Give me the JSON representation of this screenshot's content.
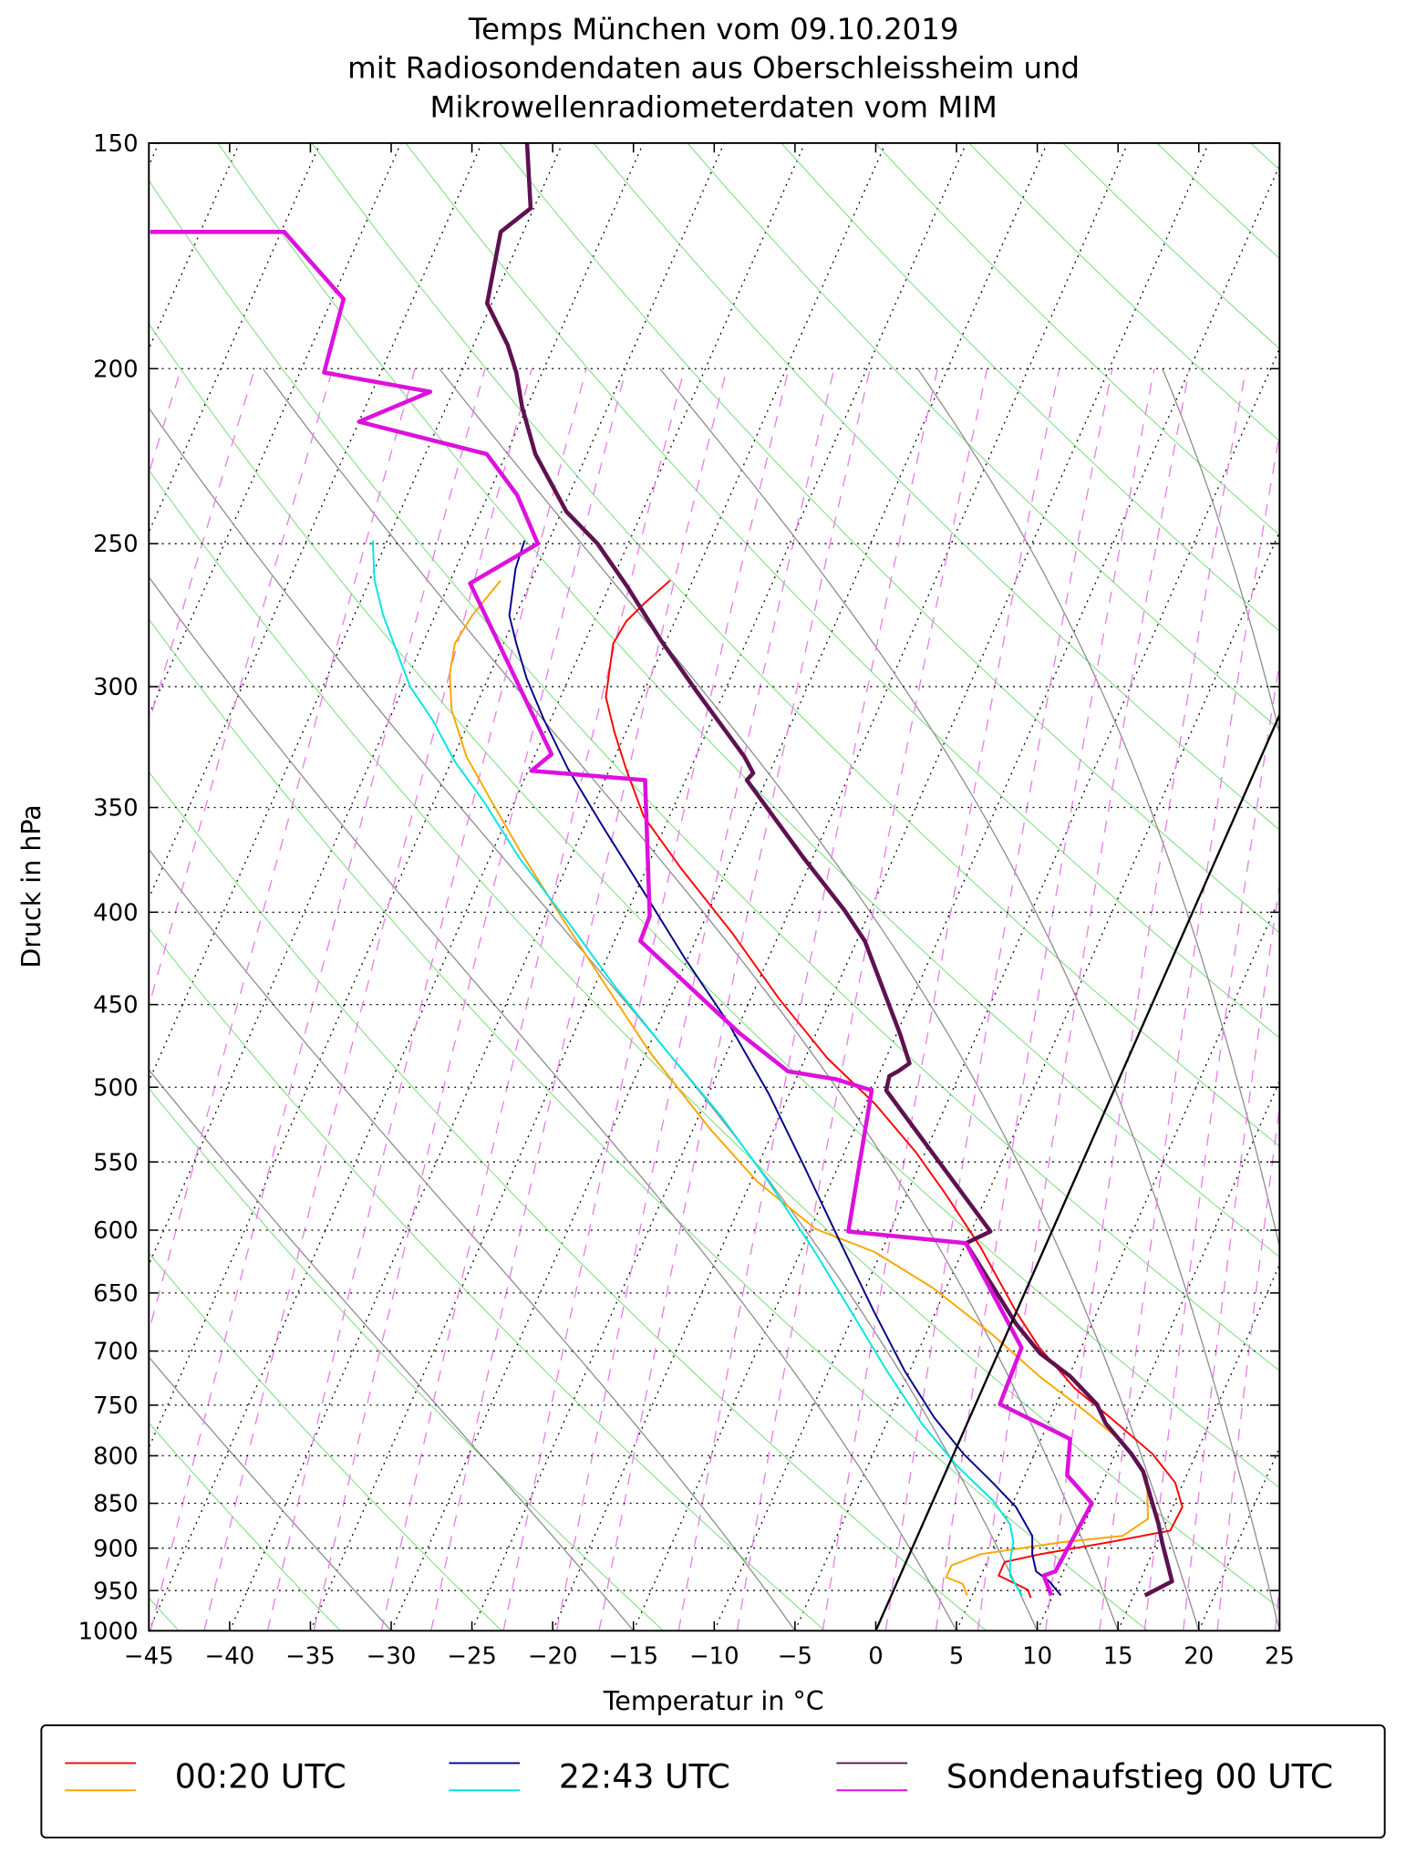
{
  "chart_data": {
    "type": "skewt",
    "title": [
      "Temps München vom 09.10.2019",
      "mit Radiosondendaten aus Oberschleissheim und",
      "Mikrowellenradiometerdaten vom MIM"
    ],
    "xlabel": "Temperatur in °C",
    "ylabel": "Druck in hPa",
    "xlim": [
      -45,
      25
    ],
    "xticks": [
      {
        "value": -45,
        "label": "−45"
      },
      {
        "value": -40,
        "label": "−40"
      },
      {
        "value": -35,
        "label": "−35"
      },
      {
        "value": -30,
        "label": "−30"
      },
      {
        "value": -25,
        "label": "−25"
      },
      {
        "value": -20,
        "label": "−20"
      },
      {
        "value": -15,
        "label": "−15"
      },
      {
        "value": -10,
        "label": "−10"
      },
      {
        "value": -5,
        "label": "−5"
      },
      0,
      5,
      10,
      15,
      20,
      25
    ],
    "ylim": [
      1000,
      150
    ],
    "yticks": [
      150,
      200,
      250,
      300,
      350,
      400,
      450,
      500,
      550,
      600,
      650,
      700,
      750,
      800,
      850,
      900,
      950,
      1000
    ],
    "yscale": "log",
    "grid": true,
    "legend_position": "bottom",
    "series": [
      {
        "name": "00:20 UTC",
        "linewidth": 1.5,
        "lines": [
          {
            "color": "#ff0000",
            "pressure": [
              262,
              270,
              276,
              284,
              304,
              318,
              333,
              354,
              378,
              411,
              447,
              482,
              511,
              543,
              573,
              613,
              666,
              697,
              734,
              762,
              798,
              828,
              854,
              880,
              893,
              907,
              916,
              932,
              949,
              959
            ],
            "values": [
              -41.4,
              -42.4,
              -43.0,
              -43.2,
              -42.2,
              -40.7,
              -39.0,
              -36.6,
              -32.9,
              -27.9,
              -23.2,
              -18.6,
              -14.4,
              -10.6,
              -7.6,
              -4.0,
              0.0,
              2.4,
              5.7,
              8.7,
              12.3,
              14.5,
              15.6,
              15.5,
              12.1,
              8.1,
              6.1,
              6.1,
              8.3,
              8.7
            ]
          },
          {
            "color": "#ffa500",
            "pressure": [
              262,
              274,
              284,
              295,
              309,
              328,
              346,
              370,
              402,
              437,
              478,
              527,
              564,
              599,
              617,
              646,
              686,
              723,
              757,
              786,
              822,
              867,
              886,
              893,
              907,
              920,
              934,
              942,
              956
            ],
            "values": [
              -51.9,
              -52.7,
              -53.0,
              -52.5,
              -51.4,
              -49.2,
              -46.6,
              -43.3,
              -39.0,
              -34.6,
              -29.8,
              -24.0,
              -19.6,
              -14.7,
              -10.4,
              -5.8,
              -0.8,
              3.2,
              7.1,
              10.1,
              12.6,
              13.8,
              12.7,
              9.2,
              4.4,
              2.9,
              2.9,
              4.1,
              4.7
            ]
          }
        ]
      },
      {
        "name": "22:43 UTC",
        "linewidth": 1.5,
        "lines": [
          {
            "color": "#00008b",
            "pressure": [
              249,
              258,
              274,
              284,
              297,
              313,
              333,
              359,
              390,
              424,
              460,
              504,
              552,
              608,
              666,
              718,
              762,
              798,
              828,
              854,
              886,
              907,
              927,
              939,
              956
            ],
            "values": [
              -51.5,
              -51.3,
              -50.4,
              -49.2,
              -47.6,
              -45.4,
              -42.6,
              -38.8,
              -34.5,
              -30.2,
              -25.8,
              -21.3,
              -17.2,
              -12.9,
              -8.8,
              -5.3,
              -2.2,
              0.6,
              3.2,
              5.3,
              7.1,
              7.6,
              8.3,
              9.4,
              10.5
            ]
          },
          {
            "color": "#00e5e5",
            "pressure": [
              249,
              262,
              274,
              286,
              300,
              313,
              330,
              348,
              373,
              405,
              440,
              478,
              519,
              564,
              617,
              666,
              718,
              768,
              810,
              847,
              873,
              893,
              914,
              932,
              956
            ],
            "values": [
              -60.9,
              -59.7,
              -58.2,
              -56.5,
              -54.6,
              -52.3,
              -49.8,
              -46.8,
              -43.2,
              -38.4,
              -33.7,
              -28.7,
              -23.6,
              -18.9,
              -14.1,
              -10.2,
              -6.4,
              -2.8,
              0.5,
              3.7,
              5.4,
              6.1,
              6.4,
              6.8,
              8.1
            ]
          }
        ]
      },
      {
        "name": "Sondenaufstieg 00 UTC",
        "linewidth": 3.5,
        "lines": [
          {
            "color": "#5e1150",
            "pressure": [
              150,
              163,
              168,
              184,
              194,
              201,
              210,
              223,
              240,
              250,
              264,
              283,
              302,
              328,
              335,
              338,
              373,
              399,
              415,
              467,
              485,
              490,
              493,
              502,
              601,
              610,
              676,
              702,
              723,
              749,
              768,
              798,
              816,
              873,
              893,
              939,
              956
            ],
            "values": [
              -62.2,
              -60.2,
              -61.4,
              -60.3,
              -57.9,
              -56.6,
              -55.3,
              -53.2,
              -49.7,
              -46.9,
              -43.9,
              -40.3,
              -36.7,
              -32.0,
              -31.0,
              -31.2,
              -25.6,
              -21.6,
              -19.5,
              -14.8,
              -13.4,
              -13.9,
              -14.3,
              -14.1,
              -3.8,
              -5.0,
              0.3,
              2.6,
              5.1,
              7.5,
              8.6,
              11.0,
              12.2,
              14.6,
              15.3,
              17.0,
              15.7
            ]
          },
          {
            "color": "#dd11dd",
            "pressure": [
              168,
              168,
              183,
              201,
              206,
              214,
              223,
              235,
              250,
              263,
              327,
              334,
              338,
              402,
              415,
              467,
              490,
              495,
              502,
              601,
              610,
              697,
              749,
              783,
              820,
              850,
              927,
              932,
              956
            ],
            "values": [
              -83.1,
              -74.8,
              -69.3,
              -68.5,
              -61.4,
              -65.0,
              -56.2,
              -53.2,
              -50.6,
              -53.7,
              -44.0,
              -44.8,
              -37.5,
              -33.5,
              -33.4,
              -24.7,
              -20.7,
              -17.5,
              -15.0,
              -12.6,
              -5.0,
              1.3,
              1.5,
              6.8,
              7.6,
              9.9,
              9.5,
              8.9,
              9.9
            ]
          }
        ]
      }
    ]
  }
}
